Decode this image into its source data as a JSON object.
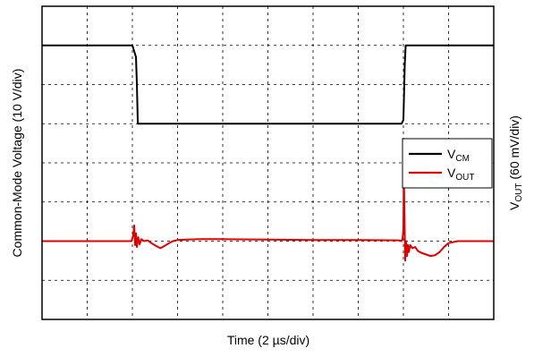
{
  "chart_data": {
    "type": "line",
    "xlabel": "Time (2 µs/div)",
    "ylabel_left": "Common-Mode Voltage (10 V/div)",
    "ylabel_right": {
      "prefix": "V",
      "subscript": "OUT",
      "suffix": " (60 mV/div)"
    },
    "xlim": [
      0,
      10
    ],
    "ylim": [
      0,
      8
    ],
    "x_divisions": 10,
    "y_divisions": 8,
    "grid": true,
    "legend": {
      "placement": "right",
      "entries": [
        {
          "base": "V",
          "sub": "CM",
          "color": "#000000"
        },
        {
          "base": "V",
          "sub": "OUT",
          "color": "#e00000"
        }
      ]
    },
    "series": [
      {
        "name": "VCM",
        "color": "#000000",
        "x": [
          0,
          2.0,
          2.08,
          2.1,
          2.12,
          7.96,
          8.0,
          8.03,
          8.05,
          10
        ],
        "y": [
          7.0,
          7.0,
          6.7,
          6.0,
          5.0,
          5.0,
          5.1,
          6.5,
          7.0,
          7.0
        ]
      },
      {
        "name": "VOUT",
        "color": "#e00000",
        "x": [
          0,
          1.98,
          2.02,
          2.04,
          2.06,
          2.08,
          2.1,
          2.13,
          2.16,
          2.2,
          2.26,
          2.34,
          2.42,
          2.52,
          2.62,
          2.7,
          2.8,
          2.9,
          3.0,
          3.2,
          3.5,
          4.0,
          5.0,
          6.0,
          7.0,
          7.9,
          7.95,
          7.98,
          8.0,
          8.01,
          8.02,
          8.04,
          8.06,
          8.08,
          8.1,
          8.12,
          8.15,
          8.2,
          8.26,
          8.32,
          8.4,
          8.5,
          8.6,
          8.7,
          8.8,
          8.9,
          9.0,
          9.2,
          9.5,
          10
        ],
        "y": [
          2.0,
          2.0,
          2.15,
          2.4,
          1.9,
          2.2,
          1.85,
          2.1,
          1.92,
          2.05,
          2.0,
          2.02,
          1.95,
          1.88,
          1.82,
          1.87,
          1.94,
          2.0,
          2.03,
          2.04,
          2.05,
          2.05,
          2.04,
          2.03,
          2.03,
          2.02,
          2.0,
          2.05,
          2.3,
          3.9,
          2.9,
          1.5,
          2.0,
          1.62,
          1.9,
          1.72,
          1.9,
          1.82,
          1.85,
          1.75,
          1.7,
          1.66,
          1.62,
          1.64,
          1.72,
          1.85,
          1.95,
          2.0,
          2.0,
          2.0
        ]
      }
    ]
  }
}
